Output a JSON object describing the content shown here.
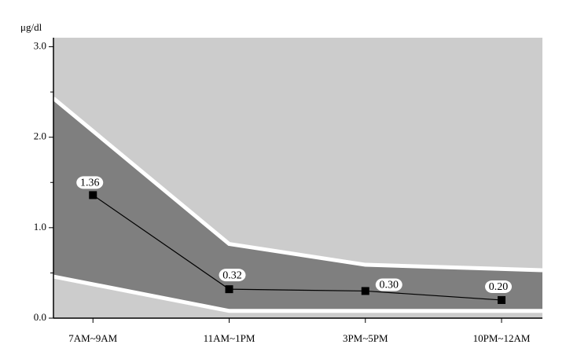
{
  "chart_data": {
    "type": "line",
    "y_label": "μg/dl",
    "categories": [
      "7AM~9AM",
      "11AM~1PM",
      "3PM~5PM",
      "10PM~12AM"
    ],
    "values": [
      1.36,
      0.32,
      0.3,
      0.2
    ],
    "value_labels": [
      "1.36",
      "0.32",
      "0.30",
      "0.20"
    ],
    "color": "#000000",
    "xlim": [
      -0.29,
      3.3
    ],
    "ylim": [
      0,
      3.1
    ],
    "yticks": [
      {
        "value": 0,
        "label": "0.0"
      },
      {
        "value": 1,
        "label": "1.0"
      },
      {
        "value": 2,
        "label": "2.0"
      },
      {
        "value": 3,
        "label": "3.0"
      }
    ],
    "yminorticks": [
      0.5,
      1.5,
      2.5
    ],
    "background_color": "#cccccc",
    "band": {
      "color": "#7f7f7f",
      "edge_color": "#ffffff",
      "upper": {
        "x": [
          -0.29,
          1,
          2,
          3.3
        ],
        "values": [
          2.43,
          0.82,
          0.59,
          0.53
        ]
      },
      "lower": {
        "x": [
          -0.29,
          1,
          3.3
        ],
        "values": [
          0.46,
          0.08,
          0.08
        ]
      }
    }
  }
}
